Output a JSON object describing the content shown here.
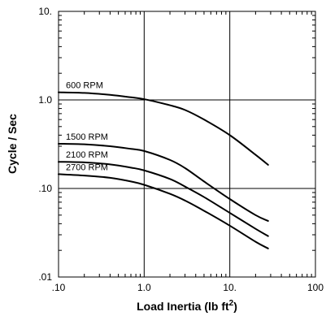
{
  "chart_data": {
    "type": "line",
    "xlabel": "Load Inertia (lb ft",
    "xlabel_sup": "2",
    "xlabel_close": ")",
    "ylabel": "Cycle / Sec",
    "xscale": "log",
    "yscale": "log",
    "xlim": [
      0.1,
      100
    ],
    "ylim": [
      0.01,
      10
    ],
    "x_ticks": [
      ".10",
      "1.0",
      "10.",
      "100"
    ],
    "y_ticks": [
      ".01",
      ".10",
      "1.0",
      "10."
    ],
    "grid": "major",
    "series": [
      {
        "name": "600 RPM",
        "x": [
          0.1,
          0.2,
          0.4,
          0.7,
          1.0,
          2,
          3,
          5,
          10,
          20,
          28
        ],
        "y": [
          1.22,
          1.2,
          1.14,
          1.07,
          1.02,
          0.87,
          0.77,
          0.6,
          0.4,
          0.24,
          0.185
        ]
      },
      {
        "name": "1500 RPM",
        "x": [
          0.1,
          0.2,
          0.4,
          0.7,
          1.0,
          2,
          3,
          5,
          10,
          20,
          28
        ],
        "y": [
          0.32,
          0.315,
          0.3,
          0.28,
          0.265,
          0.21,
          0.17,
          0.12,
          0.076,
          0.05,
          0.043
        ]
      },
      {
        "name": "2100 RPM",
        "x": [
          0.1,
          0.2,
          0.4,
          0.7,
          1.0,
          2,
          3,
          5,
          10,
          20,
          28
        ],
        "y": [
          0.2,
          0.197,
          0.187,
          0.172,
          0.16,
          0.128,
          0.105,
          0.08,
          0.053,
          0.035,
          0.029
        ]
      },
      {
        "name": "2700 RPM",
        "x": [
          0.1,
          0.2,
          0.4,
          0.7,
          1.0,
          2,
          3,
          5,
          10,
          20,
          28
        ],
        "y": [
          0.145,
          0.14,
          0.132,
          0.12,
          0.11,
          0.087,
          0.073,
          0.056,
          0.038,
          0.025,
          0.021
        ]
      }
    ]
  }
}
